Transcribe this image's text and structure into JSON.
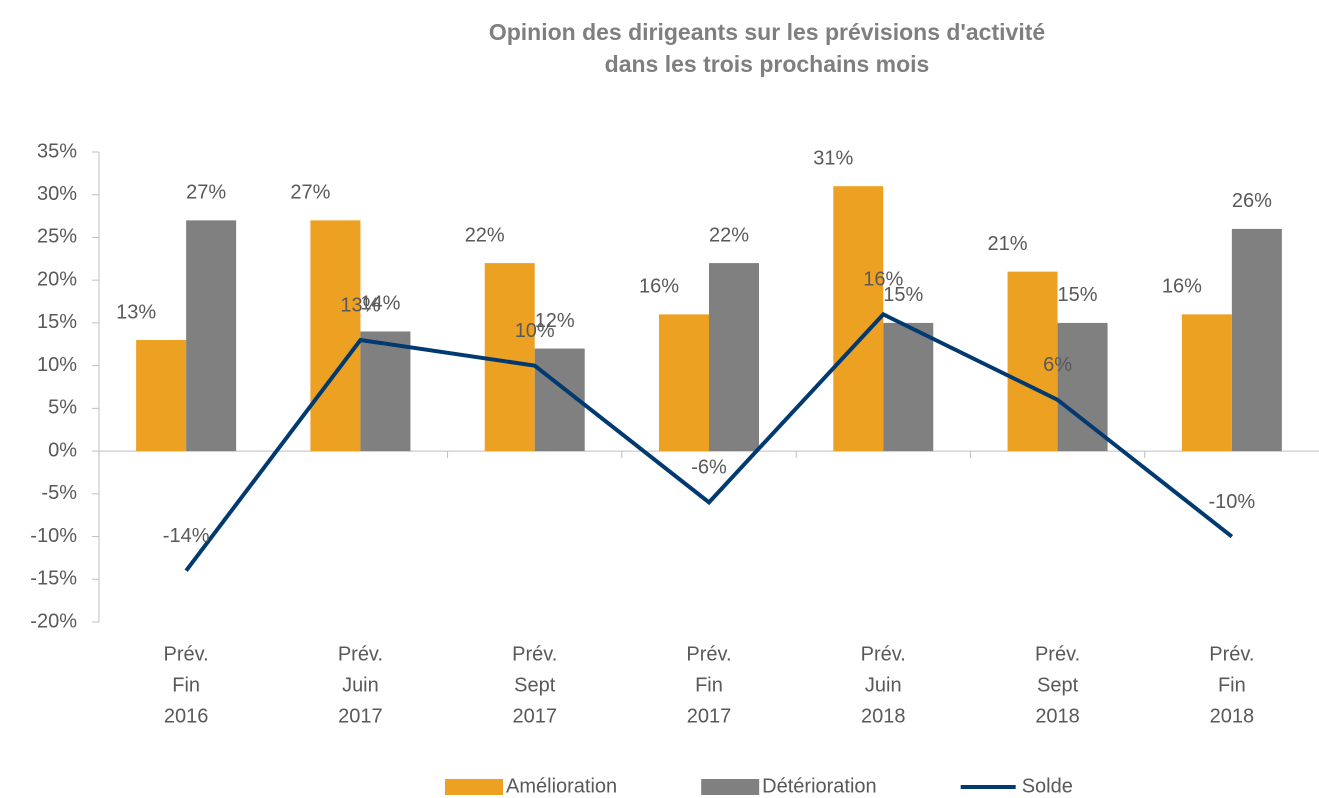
{
  "chart_data": {
    "type": "bar_line",
    "title": [
      "Opinion des dirigeants sur les prévisions d'activité",
      "dans les trois prochains mois"
    ],
    "categories": [
      [
        "Prév.",
        "Fin",
        "2016"
      ],
      [
        "Prév.",
        "Juin",
        "2017"
      ],
      [
        "Prév.",
        "Sept",
        "2017"
      ],
      [
        "Prév.",
        "Fin",
        "2017"
      ],
      [
        "Prév.",
        "Juin",
        "2018"
      ],
      [
        "Prév.",
        "Sept",
        "2018"
      ],
      [
        "Prév.",
        "Fin",
        "2018"
      ]
    ],
    "series": [
      {
        "name": "Amélioration",
        "type": "bar",
        "color": "#eda123",
        "values": [
          13,
          27,
          22,
          16,
          31,
          21,
          16
        ],
        "value_labels": [
          "13%",
          "27%",
          "22%",
          "16%",
          "31%",
          "21%",
          "16%"
        ]
      },
      {
        "name": "Détérioration",
        "type": "bar",
        "color": "#808080",
        "values": [
          27,
          14,
          12,
          22,
          15,
          15,
          26
        ],
        "value_labels": [
          "27%",
          "14%",
          "12%",
          "22%",
          "15%",
          "15%",
          "26%"
        ]
      },
      {
        "name": "Solde",
        "type": "line",
        "color": "#003a70",
        "values": [
          -14,
          13,
          10,
          -6,
          16,
          6,
          -10
        ],
        "value_labels": [
          "-14%",
          "13%",
          "10%",
          "-6%",
          "16%",
          "6%",
          "-10%"
        ]
      }
    ],
    "ylim": [
      -20,
      35
    ],
    "yticks": [
      {
        "value": -20,
        "label": "-20%"
      },
      {
        "value": -15,
        "label": "-15%"
      },
      {
        "value": -10,
        "label": "-10%"
      },
      {
        "value": -5,
        "label": "-5%"
      },
      {
        "value": 0,
        "label": "0%"
      },
      {
        "value": 5,
        "label": "5%"
      },
      {
        "value": 10,
        "label": "10%"
      },
      {
        "value": 15,
        "label": "15%"
      },
      {
        "value": 20,
        "label": "20%"
      },
      {
        "value": 25,
        "label": "25%"
      },
      {
        "value": 30,
        "label": "30%"
      },
      {
        "value": 35,
        "label": "35%"
      }
    ],
    "legend": "bottom"
  }
}
